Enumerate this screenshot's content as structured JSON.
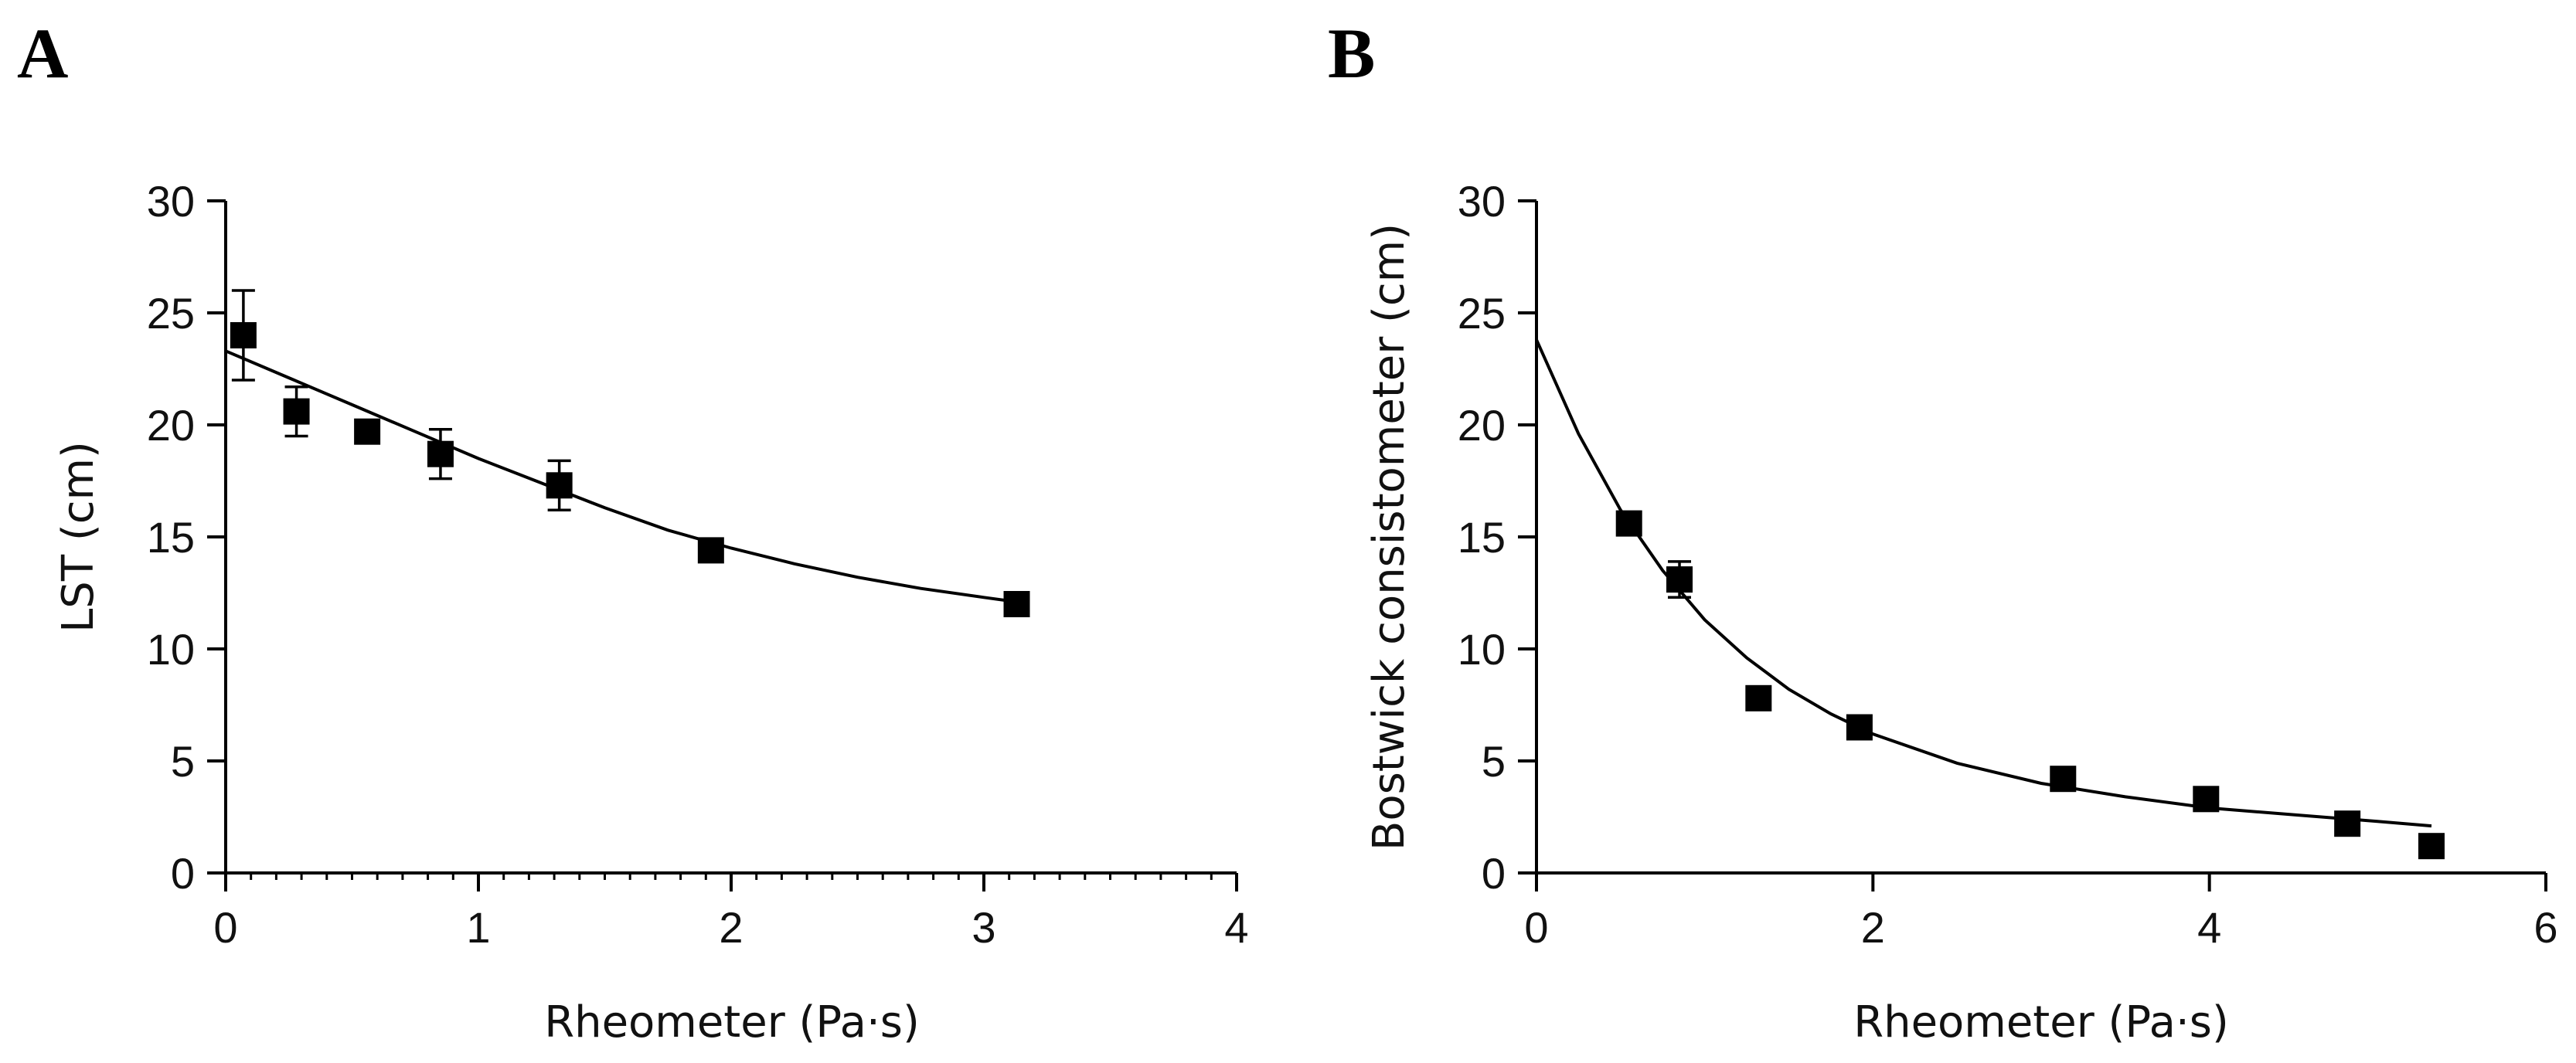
{
  "panels": [
    {
      "letter": "A",
      "chart": {
        "type": "scatter",
        "xlabel": "Rheometer (Pa·s)",
        "ylabel": "LST (cm)",
        "xlim": [
          0,
          4
        ],
        "ylim": [
          0,
          30
        ],
        "xticks": [
          "0",
          "1",
          "2",
          "3",
          "4"
        ],
        "yticks": [
          "0",
          "5",
          "10",
          "15",
          "20",
          "25",
          "30"
        ],
        "points": [
          {
            "x": 0.07,
            "y": 24.0,
            "err": 2.0
          },
          {
            "x": 0.28,
            "y": 20.6,
            "err": 1.1
          },
          {
            "x": 0.56,
            "y": 19.7,
            "err": 0.3
          },
          {
            "x": 0.85,
            "y": 18.7,
            "err": 1.1
          },
          {
            "x": 1.32,
            "y": 17.3,
            "err": 1.1
          },
          {
            "x": 1.92,
            "y": 14.4,
            "err": 0.3
          },
          {
            "x": 3.13,
            "y": 12.0,
            "err": 0.3
          }
        ],
        "fit": [
          [
            0,
            23.3
          ],
          [
            0.25,
            22.1
          ],
          [
            0.5,
            20.9
          ],
          [
            0.75,
            19.7
          ],
          [
            1.0,
            18.5
          ],
          [
            1.25,
            17.4
          ],
          [
            1.5,
            16.3
          ],
          [
            1.75,
            15.3
          ],
          [
            2.0,
            14.5
          ],
          [
            2.25,
            13.8
          ],
          [
            2.5,
            13.2
          ],
          [
            2.75,
            12.7
          ],
          [
            3.0,
            12.3
          ],
          [
            3.13,
            12.1
          ]
        ]
      }
    },
    {
      "letter": "B",
      "chart": {
        "type": "scatter",
        "xlabel": "Rheometer (Pa·s)",
        "ylabel": "Bostwick consistometer (cm)",
        "xlim": [
          0,
          6
        ],
        "ylim": [
          0,
          30
        ],
        "xticks": [
          "0",
          "2",
          "4",
          "6"
        ],
        "yticks": [
          "0",
          "5",
          "10",
          "15",
          "20",
          "25",
          "30"
        ],
        "points": [
          {
            "x": 0.55,
            "y": 15.6,
            "err": 0.4
          },
          {
            "x": 0.85,
            "y": 13.1,
            "err": 0.8
          },
          {
            "x": 1.32,
            "y": 7.8,
            "err": 0.3
          },
          {
            "x": 1.92,
            "y": 6.5,
            "err": 0.3
          },
          {
            "x": 3.13,
            "y": 4.2,
            "err": 0.3
          },
          {
            "x": 3.98,
            "y": 3.3,
            "err": 0.3
          },
          {
            "x": 4.82,
            "y": 2.2,
            "err": 0.3
          },
          {
            "x": 5.32,
            "y": 1.2,
            "err": 0.3
          }
        ],
        "fit": [
          [
            0,
            23.8
          ],
          [
            0.25,
            19.6
          ],
          [
            0.5,
            16.2
          ],
          [
            0.75,
            13.5
          ],
          [
            1.0,
            11.3
          ],
          [
            1.25,
            9.6
          ],
          [
            1.5,
            8.2
          ],
          [
            1.75,
            7.1
          ],
          [
            2.0,
            6.2
          ],
          [
            2.5,
            4.9
          ],
          [
            3.0,
            4.0
          ],
          [
            3.5,
            3.4
          ],
          [
            4.0,
            2.9
          ],
          [
            4.5,
            2.6
          ],
          [
            5.0,
            2.3
          ],
          [
            5.32,
            2.1
          ]
        ]
      }
    }
  ]
}
